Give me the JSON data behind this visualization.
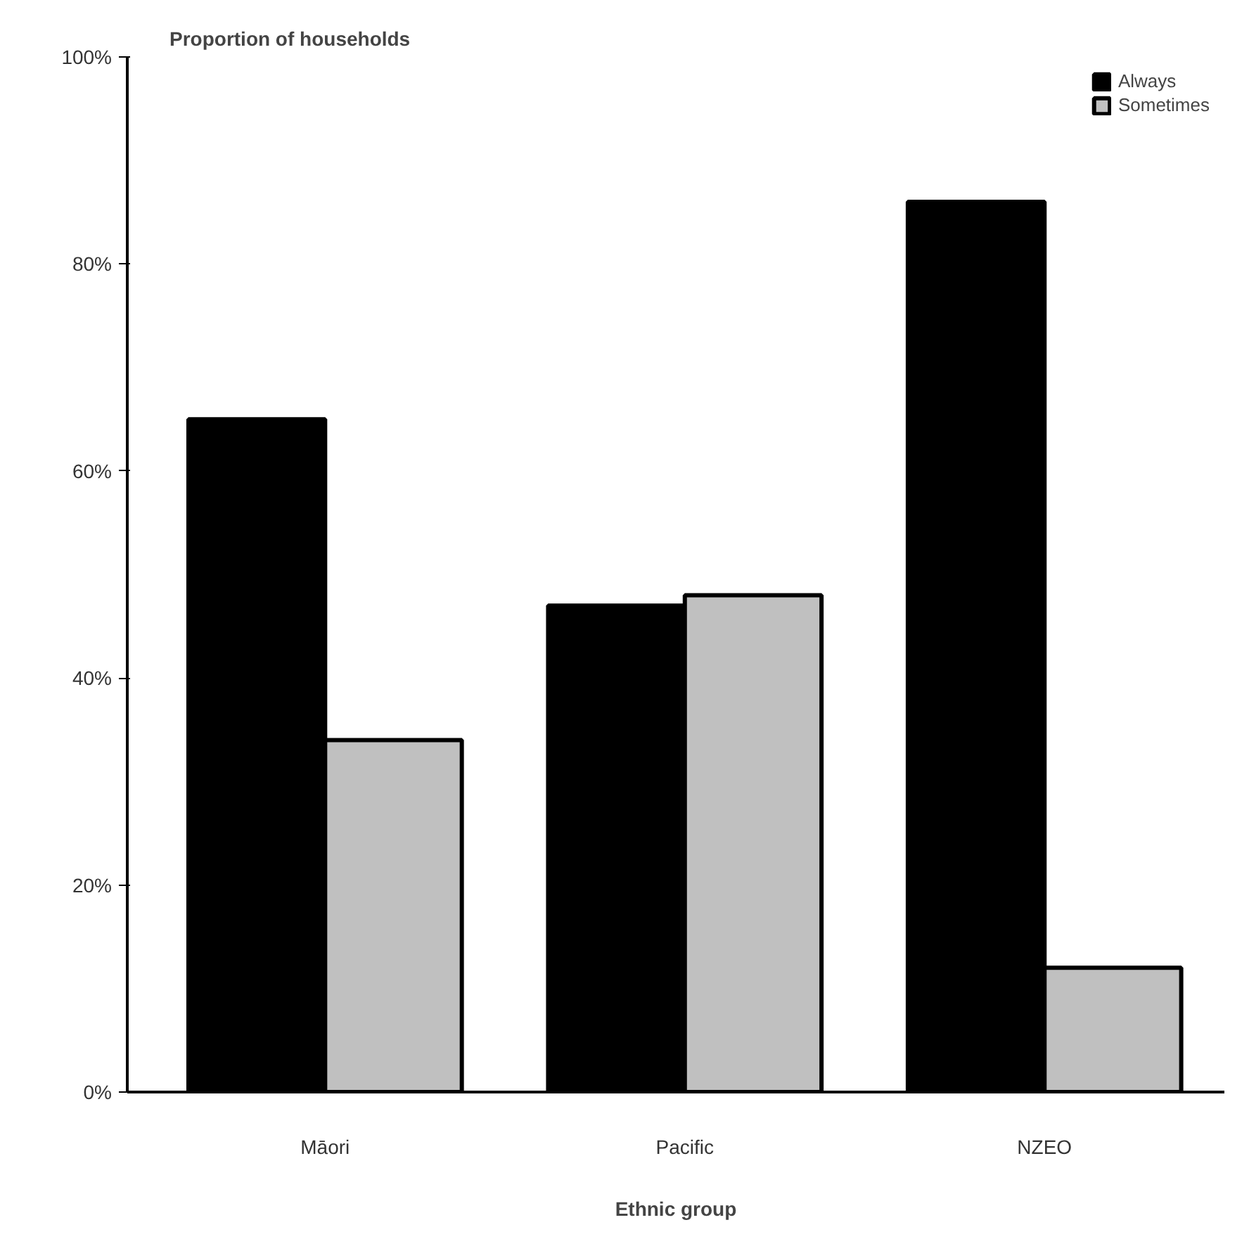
{
  "chart_data": {
    "type": "bar",
    "ylabel": "Proportion of households",
    "xlabel": "Ethnic group",
    "categories": [
      "Māori",
      "Pacific",
      "NZEO"
    ],
    "series": [
      {
        "name": "Always",
        "color": "#000000",
        "values": [
          65,
          47,
          86
        ]
      },
      {
        "name": "Sometimes",
        "color": "#c0c0c0",
        "values": [
          34,
          48,
          12
        ]
      }
    ],
    "ylim": [
      0,
      100
    ],
    "yticks": [
      {
        "value": 0,
        "label": "0%"
      },
      {
        "value": 20,
        "label": "20%"
      },
      {
        "value": 40,
        "label": "40%"
      },
      {
        "value": 60,
        "label": "60%"
      },
      {
        "value": 80,
        "label": "80%"
      },
      {
        "value": 100,
        "label": "100%"
      }
    ],
    "legend": "top right",
    "grid": false
  }
}
